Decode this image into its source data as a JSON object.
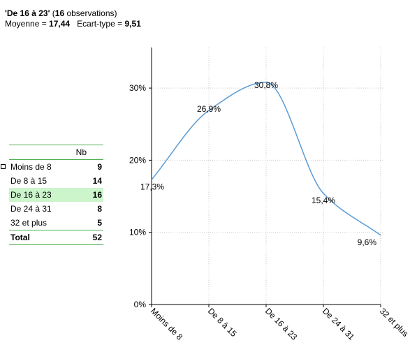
{
  "header": {
    "line1_title": "'De 16 à 23'",
    "line1_open": " (",
    "line1_count": "16",
    "line1_rest": " observations)",
    "line2_mean_label": "Moyenne = ",
    "line2_mean_value": "17,44",
    "line2_sd_label": "   Ecart-type = ",
    "line2_sd_value": "9,51"
  },
  "table": {
    "header_nb": "Nb",
    "rows": [
      {
        "label": "Moins de 8",
        "value": "9"
      },
      {
        "label": "De 8 à 15",
        "value": "14"
      },
      {
        "label": "De 16 à 23",
        "value": "16"
      },
      {
        "label": "De 24 à 31",
        "value": "8"
      },
      {
        "label": "32 et plus",
        "value": "5"
      }
    ],
    "highlight_index": 2,
    "total_label": "Total",
    "total_value": "52"
  },
  "colors": {
    "curve": "#5b9bd5",
    "grid": "#cccccc",
    "axis": "#000000",
    "table_rule": "#4caf50",
    "highlight": "#ccf5cc"
  },
  "chart_data": {
    "type": "line",
    "smooth": true,
    "categories": [
      "Moins de 8",
      "De 8 à 15",
      "De 16 à 23",
      "De 24 à 31",
      "32 et plus"
    ],
    "values": [
      17.3,
      26.9,
      30.8,
      15.4,
      9.6
    ],
    "value_labels": [
      "17,3%",
      "26,9%",
      "30,8%",
      "15,4%",
      "9,6%"
    ],
    "y_ticks": [
      0,
      10,
      20,
      30
    ],
    "y_tick_labels": [
      "0%",
      "10%",
      "20%",
      "30%"
    ],
    "ylim": [
      0,
      35
    ],
    "grid": true,
    "legend": "none"
  }
}
